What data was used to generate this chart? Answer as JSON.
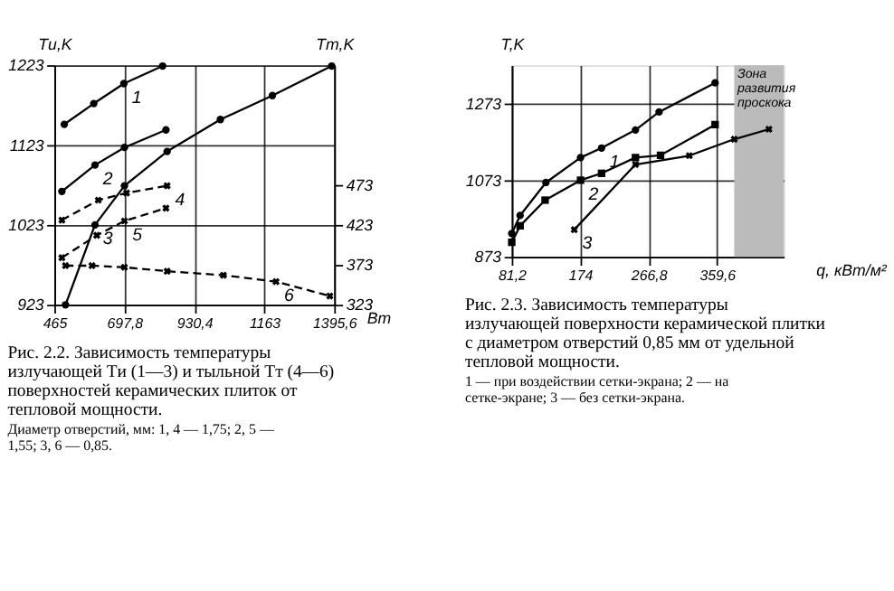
{
  "chart_data": [
    {
      "type": "line",
      "title": "Рис. 2.2. Зависимость температуры излучающей Tи (1—3) и тыльной Tт (4—6) поверхностей керамических плиток от тепловой мощности.",
      "annotations": [
        "Диаметр отверстий, мм: 1, 4 — 1,75; 2, 5 — 1,55; 3, 6 — 0,85."
      ],
      "xlabel": "Вт",
      "ylabel": "Tи,K",
      "y2label": "Tт,K",
      "xlim": [
        465,
        1395.6
      ],
      "xticks": [
        465,
        {
          "value": 697.8,
          "label": "697,8"
        },
        {
          "value": 930.4,
          "label": "930,4"
        },
        1163,
        {
          "value": 1395.6,
          "label": "1395,6"
        }
      ],
      "ylim": [
        923,
        1223
      ],
      "yticks": [
        923,
        1023,
        1123,
        1223
      ],
      "y2lim": [
        323,
        623
      ],
      "y2ticks": [
        323,
        373,
        423,
        473
      ],
      "grid": true,
      "series": [
        {
          "name": "1",
          "color": "#000000",
          "marker": "circle",
          "line_style": "solid",
          "x": [
            498,
            596,
            696,
            825
          ],
          "values": [
            1149,
            1175,
            1200,
            1222
          ]
        },
        {
          "name": "2",
          "color": "#000000",
          "marker": "circle",
          "line_style": "solid",
          "x": [
            490,
            600,
            698,
            836
          ],
          "values": [
            1065,
            1098,
            1120,
            1142
          ]
        },
        {
          "name": "3",
          "color": "#000000",
          "marker": "circle",
          "line_style": "solid",
          "x": [
            502,
            600,
            698,
            840,
            1017,
            1190,
            1387
          ],
          "values": [
            923,
            1023,
            1072,
            1115,
            1155,
            1185,
            1222
          ]
        },
        {
          "name": "4",
          "color": "#000000",
          "marker": "cross",
          "line_style": "dashed",
          "axis": "y2",
          "x": [
            490,
            611,
            705,
            840
          ],
          "values": [
            429,
            454,
            463,
            472
          ]
        },
        {
          "name": "5",
          "color": "#000000",
          "marker": "cross",
          "line_style": "dashed",
          "axis": "y2",
          "x": [
            490,
            606,
            698,
            836
          ],
          "values": [
            382,
            410,
            428,
            444
          ]
        },
        {
          "name": "6",
          "color": "#000000",
          "marker": "cross",
          "line_style": "dashed",
          "axis": "y2",
          "x": [
            502,
            590,
            698,
            840,
            1027,
            1202,
            1381
          ],
          "values": [
            372,
            372,
            370,
            365,
            360,
            352,
            334
          ]
        }
      ]
    },
    {
      "type": "line",
      "title": "Рис. 2.3. Зависимость температуры излучающей поверхности керамической плитки с диаметром отверстий 0,85 мм от удельной тепловой мощности.",
      "annotations": [
        "1 — при воздействии сетки-экрана; 2 — на сетке-экране; 3 — без сетки-экрана."
      ],
      "xlabel": "q, кВт/м²",
      "ylabel": "T,K",
      "xlim": [
        81.2,
        450
      ],
      "xticks": [
        {
          "value": 81.2,
          "label": "81,2"
        },
        174,
        {
          "value": 266.8,
          "label": "266,8"
        },
        {
          "value": 359.6,
          "label": "359,6"
        }
      ],
      "ylim": [
        873,
        1373
      ],
      "yticks": [
        873,
        1073,
        1273
      ],
      "grid": true,
      "bands": [
        {
          "axis": "x",
          "from": 383,
          "to": 450,
          "label": "Зона развития проскока",
          "color": "#bbbbbb"
        }
      ],
      "series": [
        {
          "name": "1",
          "color": "#000000",
          "marker": "circle",
          "line_style": "solid",
          "x": [
            81.2,
            92.5,
            127.5,
            174.5,
            203,
            249,
            281,
            357
          ],
          "values": [
            934,
            981,
            1067,
            1132,
            1157,
            1204,
            1251,
            1327
          ]
        },
        {
          "name": "2",
          "color": "#000000",
          "marker": "square",
          "line_style": "solid",
          "x": [
            81.2,
            92.5,
            126.4,
            174.5,
            203,
            249,
            283,
            357
          ],
          "values": [
            911,
            954,
            1021,
            1073,
            1091,
            1132,
            1138,
            1218
          ]
        },
        {
          "name": "3",
          "color": "#000000",
          "marker": "cross",
          "line_style": "solid",
          "x": [
            166,
            249,
            322,
            383,
            430
          ],
          "values": [
            944,
            1114,
            1137,
            1180,
            1206
          ]
        }
      ]
    }
  ]
}
